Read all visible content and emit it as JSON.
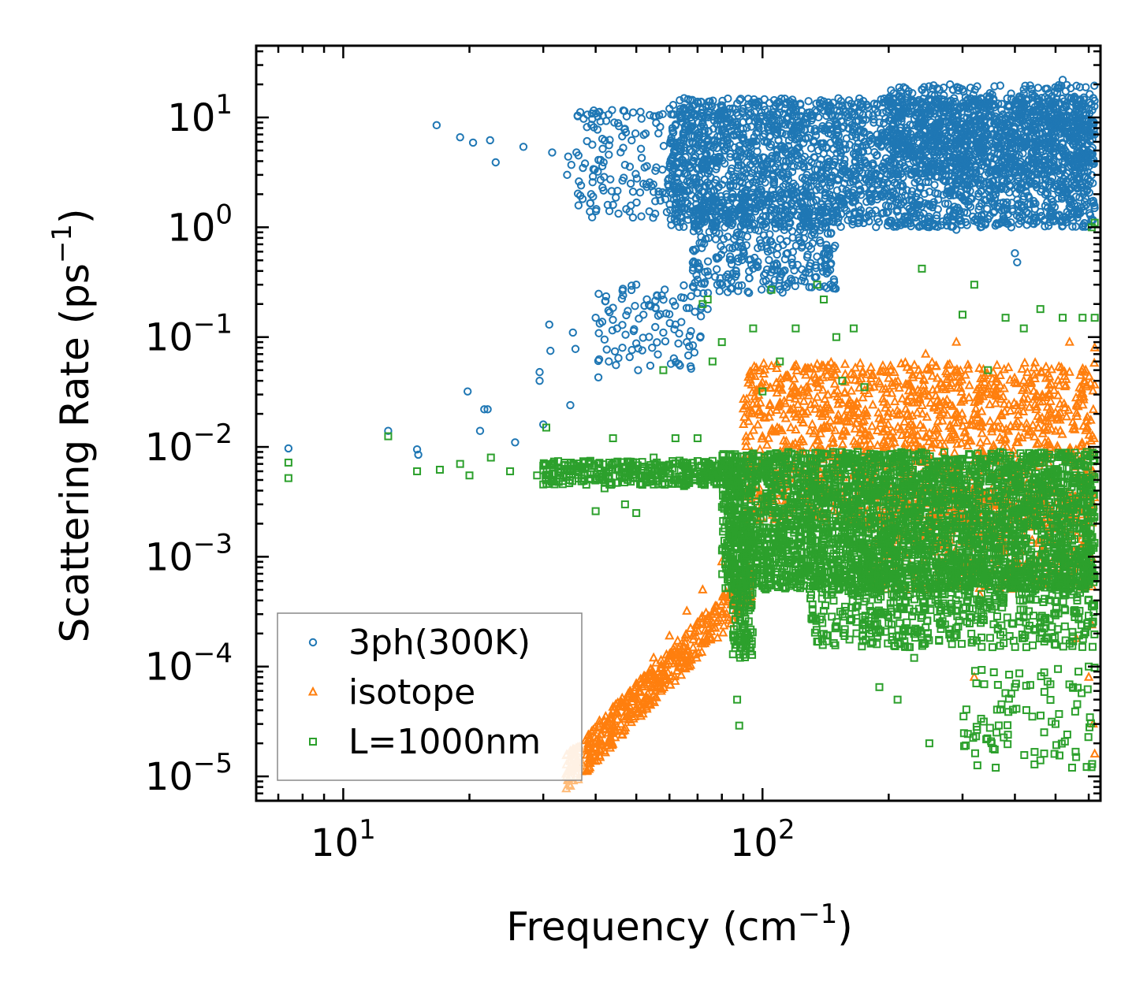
{
  "chart_data": {
    "type": "scatter",
    "title": "",
    "xlabel": "Frequency (cm",
    "xlabel_sup": "−1",
    "xlabel_end": ")",
    "ylabel": "Scattering Rate (ps",
    "ylabel_sup": "−1",
    "ylabel_end": ")",
    "xscale": "log",
    "yscale": "log",
    "xlim": [
      6.2,
      640
    ],
    "ylim": [
      6e-06,
      45
    ],
    "grid": false,
    "legend_position": "lower-left",
    "x_ticks": [
      {
        "base": "10",
        "exp": "1",
        "value": 10
      },
      {
        "base": "10",
        "exp": "2",
        "value": 100
      }
    ],
    "y_ticks": [
      {
        "base": "10",
        "exp": "1",
        "value": 10
      },
      {
        "base": "10",
        "exp": "0",
        "value": 1
      },
      {
        "base": "10",
        "exp": "−1",
        "value": 0.1
      },
      {
        "base": "10",
        "exp": "−2",
        "value": 0.01
      },
      {
        "base": "10",
        "exp": "−3",
        "value": 0.001
      },
      {
        "base": "10",
        "exp": "−4",
        "value": 0.0001
      },
      {
        "base": "10",
        "exp": "−5",
        "value": 1e-05
      }
    ],
    "series": [
      {
        "name": "3ph(300K)",
        "marker": "circle",
        "color": "#1f77b4",
        "points": [
          [
            7.4,
            0.0097
          ],
          [
            12.8,
            0.014
          ],
          [
            15.0,
            0.0095
          ],
          [
            15.1,
            0.0085
          ],
          [
            16.7,
            8.5
          ],
          [
            19.0,
            6.6
          ],
          [
            19.8,
            0.032
          ],
          [
            20.4,
            5.9
          ],
          [
            21.2,
            0.014
          ],
          [
            21.7,
            0.022
          ],
          [
            22.1,
            0.022
          ],
          [
            22.4,
            6.2
          ],
          [
            23.1,
            3.9
          ],
          [
            25.7,
            0.011
          ],
          [
            26.9,
            5.4
          ],
          [
            29.4,
            0.048
          ],
          [
            29.4,
            0.04
          ],
          [
            30.0,
            0.016
          ],
          [
            31.0,
            0.13
          ],
          [
            31.2,
            0.075
          ],
          [
            31.5,
            4.8
          ],
          [
            34.2,
            3.0
          ],
          [
            34.4,
            4.4
          ],
          [
            35.0,
            3.7
          ],
          [
            35.3,
            0.11
          ],
          [
            35.8,
            0.078
          ],
          [
            36.0,
            4.8
          ],
          [
            34.8,
            0.024
          ],
          [
            39.4,
            2.9
          ],
          [
            40.0,
            0.15
          ],
          [
            40.6,
            0.043
          ],
          [
            41.5,
            3.6
          ],
          [
            42.0,
            0.095
          ],
          [
            43.0,
            0.06
          ],
          [
            44.0,
            1.6
          ],
          [
            45.0,
            0.12
          ],
          [
            46.5,
            0.24
          ],
          [
            47.0,
            3.7
          ],
          [
            48.5,
            2.5
          ],
          [
            50.0,
            0.3
          ],
          [
            50.5,
            0.05
          ],
          [
            52.0,
            0.16
          ],
          [
            53.0,
            3.6
          ],
          [
            54.0,
            0.055
          ],
          [
            55.0,
            2.1
          ],
          [
            56.0,
            0.24
          ],
          [
            57.0,
            8.2
          ],
          [
            58.0,
            0.11
          ],
          [
            60.0,
            12.0
          ],
          [
            61.0,
            7.6
          ],
          [
            62.0,
            0.13
          ],
          [
            63.0,
            1.5
          ],
          [
            64.0,
            0.23
          ],
          [
            65.0,
            2.4
          ],
          [
            66.0,
            0.09
          ],
          [
            67.0,
            12.5
          ],
          [
            68.0,
            6.0
          ],
          [
            69.0,
            0.17
          ],
          [
            70.0,
            1.3
          ],
          [
            72.0,
            9.0
          ],
          [
            74.0,
            0.18
          ],
          [
            75.0,
            4.0
          ],
          [
            76.0,
            1.1
          ],
          [
            78.0,
            0.3
          ],
          [
            80.0,
            7.5
          ],
          [
            82.0,
            2.0
          ],
          [
            85.0,
            0.38
          ],
          [
            88.0,
            5.5
          ],
          [
            90.0,
            12.0
          ],
          [
            92.0,
            1.2
          ],
          [
            95.0,
            0.42
          ],
          [
            98.0,
            8.0
          ],
          [
            100.0,
            3.0
          ],
          [
            103.0,
            0.6
          ],
          [
            106.0,
            10.5
          ],
          [
            110.0,
            1.1
          ],
          [
            114.0,
            4.0
          ],
          [
            118.0,
            0.45
          ],
          [
            120.0,
            7.5
          ],
          [
            124.0,
            2.2
          ],
          [
            128.0,
            11.0
          ],
          [
            132.0,
            0.9
          ],
          [
            136.0,
            5.0
          ],
          [
            140.0,
            14.0
          ],
          [
            145.0,
            2.6
          ],
          [
            150.0,
            1.4
          ],
          [
            155.0,
            8.0
          ],
          [
            160.0,
            3.0
          ],
          [
            165.0,
            12.5
          ],
          [
            170.0,
            1.1
          ],
          [
            175.0,
            6.0
          ],
          [
            180.0,
            2.0
          ],
          [
            190.0,
            9.0
          ],
          [
            200.0,
            4.0
          ],
          [
            210.0,
            1.8
          ],
          [
            220.0,
            15.0
          ],
          [
            230.0,
            3.2
          ],
          [
            240.0,
            18.0
          ],
          [
            250.0,
            8.0
          ],
          [
            260.0,
            1.2
          ],
          [
            270.0,
            5.0
          ],
          [
            280.0,
            11.0
          ],
          [
            290.0,
            0.95
          ],
          [
            300.0,
            3.5
          ],
          [
            310.0,
            12.0
          ],
          [
            320.0,
            7.0
          ],
          [
            330.0,
            2.4
          ],
          [
            345.0,
            5.0
          ],
          [
            360.0,
            2.0
          ],
          [
            380.0,
            1.6
          ],
          [
            392.0,
            1.0
          ],
          [
            400.0,
            0.58
          ],
          [
            405.0,
            0.48
          ],
          [
            410.0,
            12.0
          ],
          [
            420.0,
            18.0
          ],
          [
            440.0,
            3.0
          ],
          [
            460.0,
            8.0
          ],
          [
            480.0,
            14.0
          ],
          [
            500.0,
            6.0
          ],
          [
            520.0,
            22.0
          ],
          [
            540.0,
            4.0
          ],
          [
            560.0,
            9.0
          ],
          [
            580.0,
            2.5
          ],
          [
            600.0,
            12.0
          ],
          [
            615.0,
            15.0
          ],
          [
            620.0,
            7.0
          ]
        ],
        "bands": [
          {
            "x": [
              60,
              620
            ],
            "y": [
              1.0,
              15.0
            ],
            "count": 2600
          },
          {
            "x": [
              68,
              150
            ],
            "y": [
              0.25,
              2.0
            ],
            "count": 380
          },
          {
            "x": [
              36,
              75
            ],
            "y": [
              1.2,
              12.0
            ],
            "count": 180
          },
          {
            "x": [
              40,
              72
            ],
            "y": [
              0.05,
              0.3
            ],
            "count": 90
          },
          {
            "x": [
              200,
              620
            ],
            "y": [
              3.0,
              20.0
            ],
            "count": 700
          }
        ]
      },
      {
        "name": "isotope",
        "marker": "triangle",
        "color": "#ff7f0e",
        "points": [
          [
            34.0,
            1.05e-05
          ],
          [
            34.6,
            1.15e-05
          ],
          [
            35.5,
            1.2e-05
          ],
          [
            36.2,
            1.4e-05
          ],
          [
            39.0,
            2e-05
          ],
          [
            42.0,
            3.2e-05
          ],
          [
            46.0,
            4.8e-05
          ],
          [
            50.0,
            7e-05
          ],
          [
            55.0,
            0.00012
          ],
          [
            60.0,
            0.00019
          ],
          [
            66.0,
            0.00032
          ],
          [
            72.0,
            0.0005
          ],
          [
            80.0,
            0.0009
          ],
          [
            90.0,
            0.0017
          ],
          [
            100.0,
            0.003
          ],
          [
            112.0,
            0.005
          ],
          [
            125.0,
            0.009
          ],
          [
            140.0,
            0.015
          ],
          [
            155.0,
            0.025
          ],
          [
            170.0,
            0.04
          ],
          [
            205.0,
            0.012
          ],
          [
            225.0,
            0.05
          ],
          [
            245.0,
            0.07
          ],
          [
            270.0,
            0.009
          ],
          [
            290.0,
            0.09
          ],
          [
            320.0,
            0.02
          ],
          [
            350.0,
            0.03
          ],
          [
            380.0,
            0.012
          ],
          [
            420.0,
            0.04
          ],
          [
            470.0,
            0.015
          ],
          [
            540.0,
            0.09
          ],
          [
            590.0,
            0.05
          ],
          [
            620.0,
            0.08
          ],
          [
            320.0,
            8e-05
          ],
          [
            560.0,
            0.00018
          ],
          [
            610.0,
            0.00024
          ],
          [
            620.0,
            1.6e-05
          ],
          [
            615.0,
            3e-05
          ],
          [
            600.0,
            8e-05
          ],
          [
            330.0,
            0.00045
          ]
        ],
        "bands": [
          {
            "x": [
              34,
              95
            ],
            "y": "trend",
            "count": 480
          },
          {
            "x": [
              90,
              620
            ],
            "y": [
              0.002,
              0.06
            ],
            "count": 1400
          },
          {
            "x": [
              180,
              620
            ],
            "y": [
              0.0005,
              0.004
            ],
            "count": 400
          }
        ]
      },
      {
        "name": "L=1000nm",
        "marker": "square",
        "color": "#2ca02c",
        "points": [
          [
            7.4,
            0.0072
          ],
          [
            7.4,
            0.0052
          ],
          [
            12.8,
            0.0125
          ],
          [
            15.0,
            0.006
          ],
          [
            17.0,
            0.0062
          ],
          [
            19.0,
            0.007
          ],
          [
            20.0,
            0.0055
          ],
          [
            22.5,
            0.008
          ],
          [
            25.0,
            0.006
          ],
          [
            29.0,
            0.0055
          ],
          [
            30.5,
            0.015
          ],
          [
            33.0,
            0.0058
          ],
          [
            35.0,
            0.006
          ],
          [
            38.5,
            0.0072
          ],
          [
            40.0,
            0.0026
          ],
          [
            42.0,
            0.0042
          ],
          [
            44.0,
            0.012
          ],
          [
            47.0,
            0.003
          ],
          [
            50.0,
            0.0025
          ],
          [
            55.0,
            0.008
          ],
          [
            58.0,
            0.05
          ],
          [
            62.0,
            0.012
          ],
          [
            65.0,
            0.0044
          ],
          [
            70.0,
            0.012
          ],
          [
            72.0,
            0.2
          ],
          [
            74.0,
            0.22
          ],
          [
            76.0,
            0.06
          ],
          [
            80.0,
            0.09
          ],
          [
            85.0,
            0.00045
          ],
          [
            87.0,
            5e-05
          ],
          [
            88.0,
            2.9e-05
          ],
          [
            95.0,
            0.12
          ],
          [
            100.0,
            0.032
          ],
          [
            105.0,
            0.27
          ],
          [
            110.0,
            0.06
          ],
          [
            120.0,
            0.12
          ],
          [
            135.0,
            0.3
          ],
          [
            140.0,
            0.22
          ],
          [
            150.0,
            0.1
          ],
          [
            155.0,
            0.04
          ],
          [
            165.0,
            0.12
          ],
          [
            175.0,
            0.035
          ],
          [
            180.0,
            0.0002
          ],
          [
            190.0,
            6.5e-05
          ],
          [
            210.0,
            5e-05
          ],
          [
            230.0,
            0.00012
          ],
          [
            240.0,
            0.42
          ],
          [
            250.0,
            2e-05
          ],
          [
            280.0,
            0.0002
          ],
          [
            300.0,
            0.16
          ],
          [
            320.0,
            0.3
          ],
          [
            345.0,
            0.05
          ],
          [
            360.0,
            1.2e-05
          ],
          [
            380.0,
            0.15
          ],
          [
            400.0,
            6.5e-05
          ],
          [
            420.0,
            0.12
          ],
          [
            460.0,
            0.18
          ],
          [
            500.0,
            3e-05
          ],
          [
            520.0,
            0.15
          ],
          [
            560.0,
            1.5e-05
          ],
          [
            580.0,
            0.15
          ],
          [
            600.0,
            0.0001
          ],
          [
            610.0,
            1.0
          ],
          [
            620.0,
            0.15
          ],
          [
            620.0,
            1.1
          ]
        ],
        "bands": [
          {
            "x": [
              30,
              90
            ],
            "y": [
              0.0045,
              0.0075
            ],
            "count": 360
          },
          {
            "x": [
              80,
              620
            ],
            "y": [
              0.0005,
              0.009
            ],
            "count": 3200
          },
          {
            "x": [
              85,
              95
            ],
            "y": [
              0.00012,
              0.002
            ],
            "count": 160
          },
          {
            "x": [
              130,
              620
            ],
            "y": [
              0.00015,
              0.0008
            ],
            "count": 600
          },
          {
            "x": [
              300,
              620
            ],
            "y": [
              1.2e-05,
              0.0001
            ],
            "count": 90
          }
        ]
      }
    ]
  }
}
